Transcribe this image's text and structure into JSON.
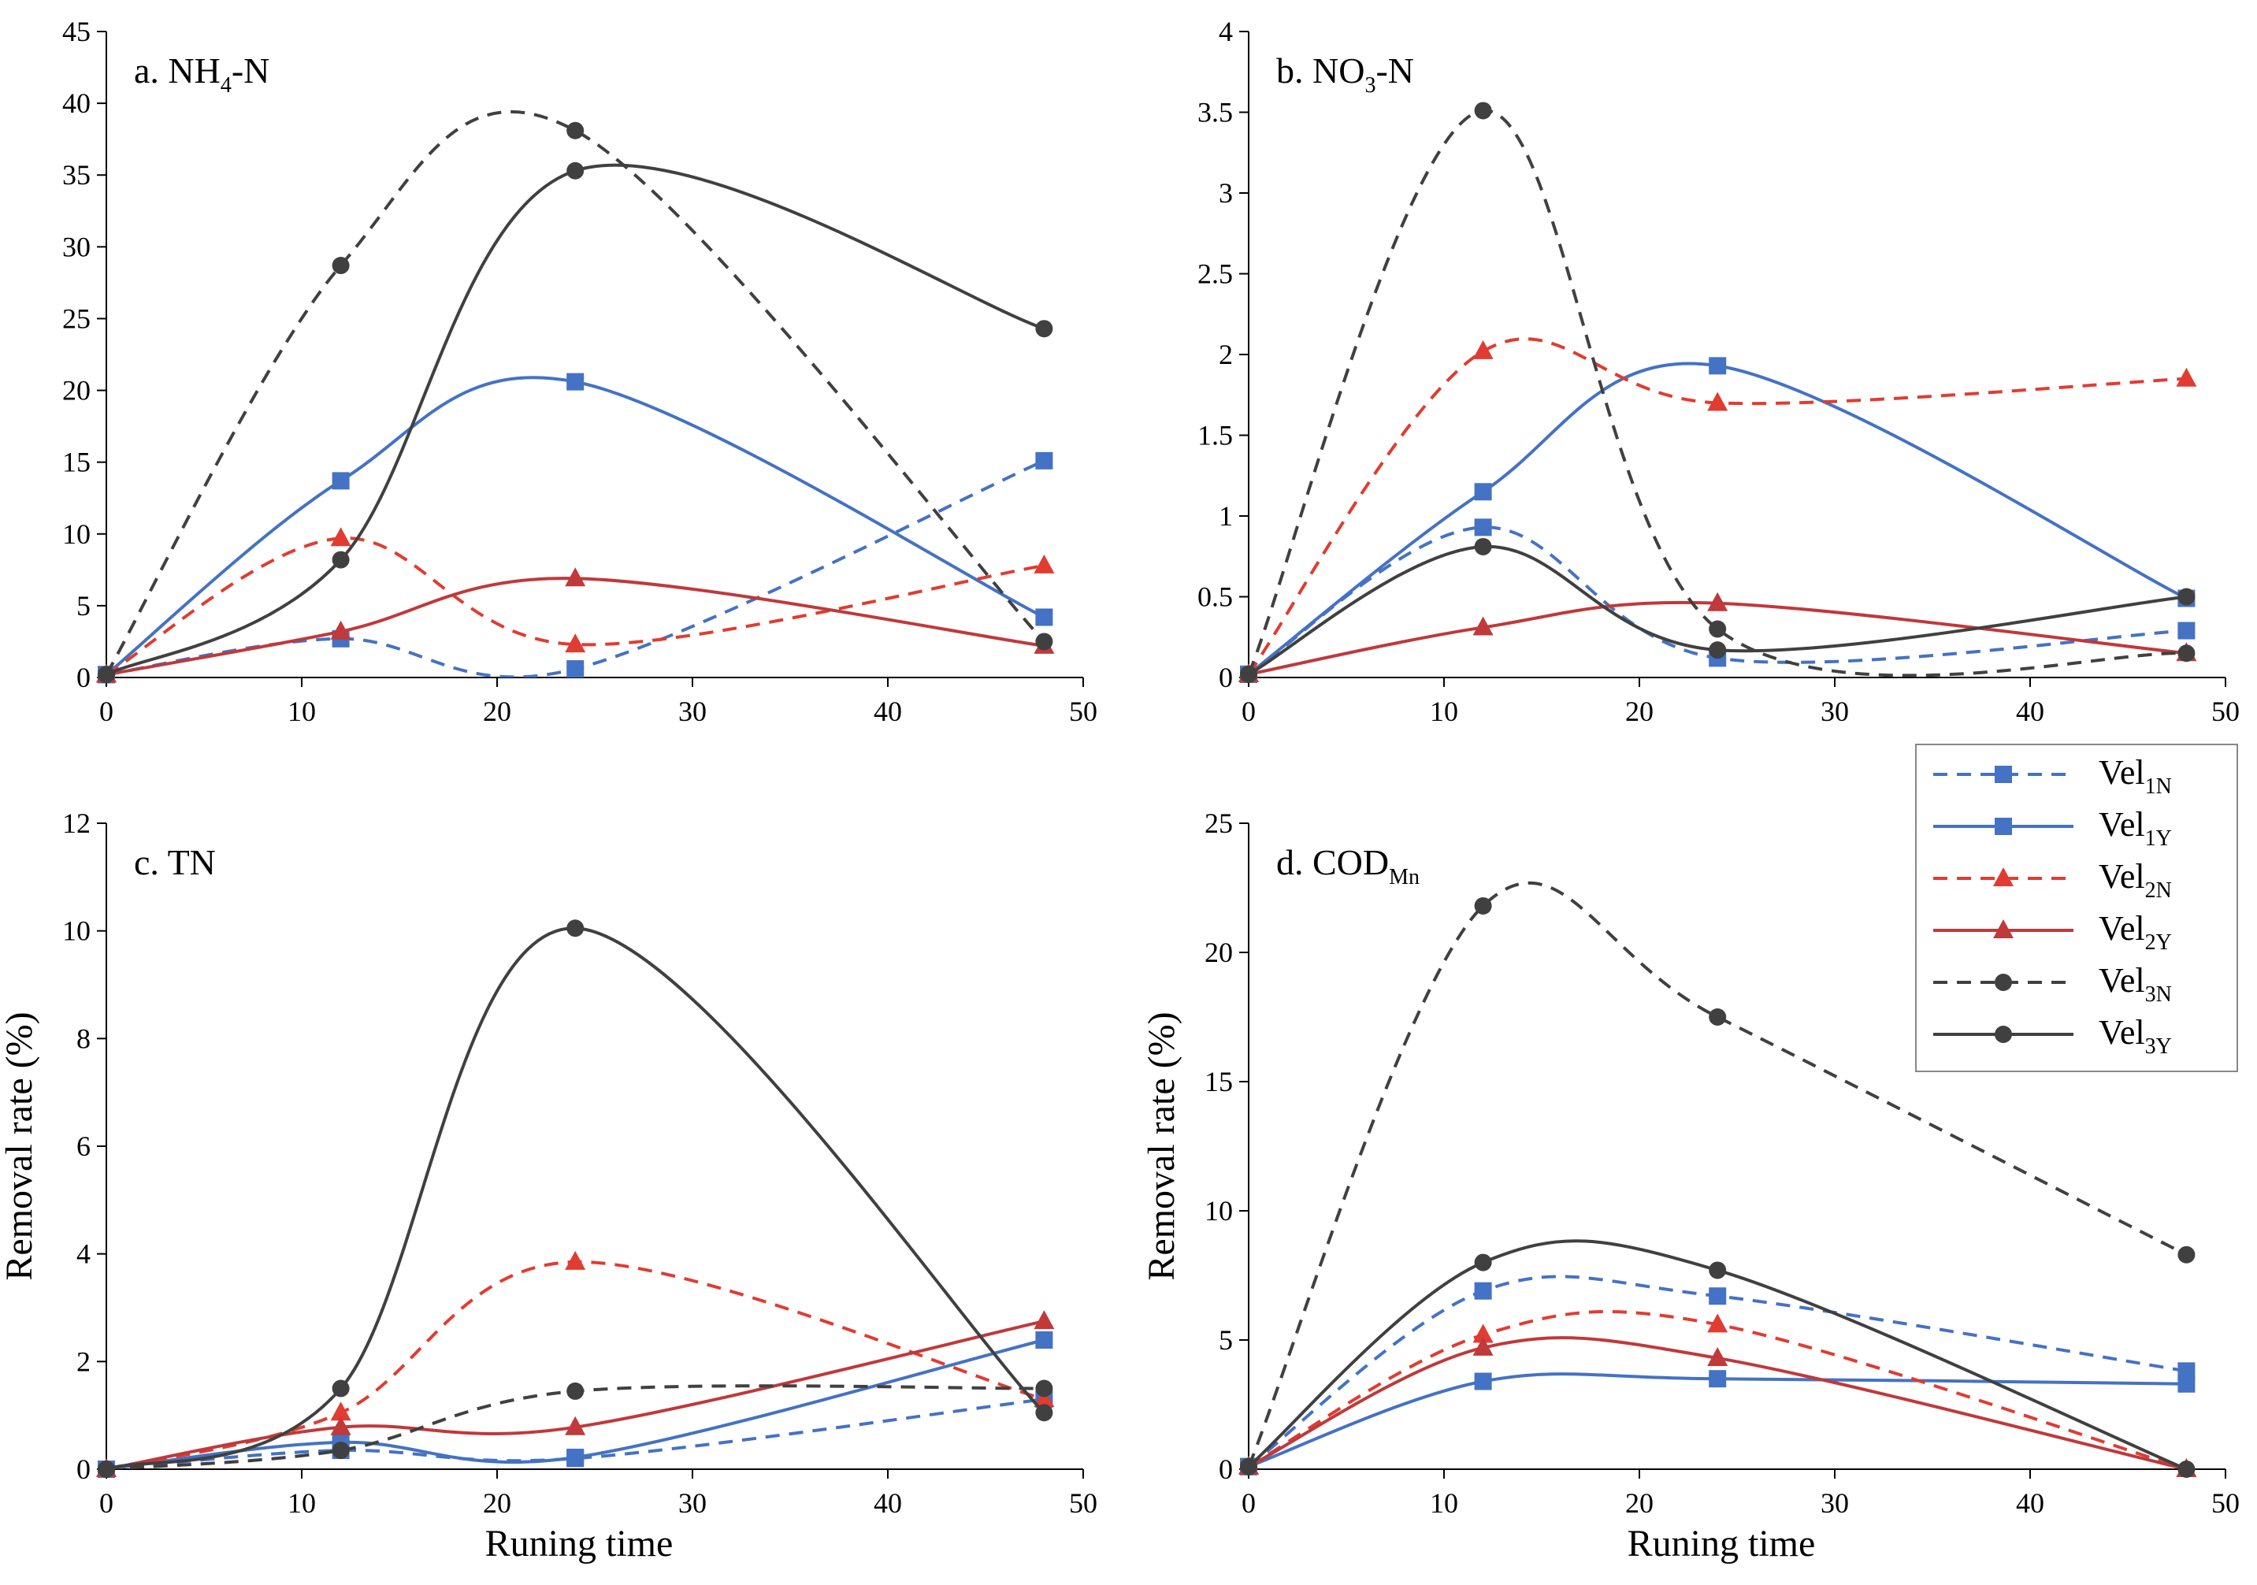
{
  "chart_data": [
    {
      "id": "a",
      "type": "line",
      "title": "a. NH4-N",
      "title_parts": {
        "prefix": "a. NH",
        "sub": "4",
        "suffix": "-N"
      },
      "xlabel": "",
      "ylabel": "",
      "xlim": [
        0,
        50
      ],
      "ylim": [
        0,
        45
      ],
      "xticks": [
        0,
        10,
        20,
        30,
        40,
        50
      ],
      "yticks": [
        0,
        5,
        10,
        15,
        20,
        25,
        30,
        35,
        40,
        45
      ],
      "x": [
        0,
        12,
        24,
        48
      ],
      "series": [
        {
          "key": "vel1N",
          "values": [
            0.2,
            2.7,
            0.6,
            15.1
          ]
        },
        {
          "key": "vel1Y",
          "values": [
            0.2,
            13.7,
            20.6,
            4.2
          ]
        },
        {
          "key": "vel2N",
          "values": [
            0.2,
            9.7,
            2.3,
            7.8
          ]
        },
        {
          "key": "vel2Y",
          "values": [
            0.2,
            3.2,
            6.9,
            2.2
          ]
        },
        {
          "key": "vel3N",
          "values": [
            0.2,
            28.7,
            38.1,
            2.5
          ]
        },
        {
          "key": "vel3Y",
          "values": [
            0.2,
            8.2,
            35.3,
            24.3
          ]
        }
      ]
    },
    {
      "id": "b",
      "type": "line",
      "title": "b. NO3-N",
      "title_parts": {
        "prefix": "b.  NO",
        "sub": "3",
        "suffix": "-N"
      },
      "xlabel": "",
      "ylabel": "",
      "xlim": [
        0,
        50
      ],
      "ylim": [
        0,
        4
      ],
      "xticks": [
        0,
        10,
        20,
        30,
        40,
        50
      ],
      "yticks": [
        0,
        0.5,
        1,
        1.5,
        2,
        2.5,
        3,
        3.5,
        4
      ],
      "x": [
        0,
        12,
        24,
        48
      ],
      "series": [
        {
          "key": "vel1N",
          "values": [
            0.02,
            0.93,
            0.12,
            0.29
          ]
        },
        {
          "key": "vel1Y",
          "values": [
            0.02,
            1.15,
            1.93,
            0.49
          ]
        },
        {
          "key": "vel2N",
          "values": [
            0.02,
            2.02,
            1.7,
            1.85
          ]
        },
        {
          "key": "vel2Y",
          "values": [
            0.02,
            0.31,
            0.46,
            0.15
          ]
        },
        {
          "key": "vel3N",
          "values": [
            0.02,
            3.51,
            0.3,
            0.15
          ]
        },
        {
          "key": "vel3Y",
          "values": [
            0.02,
            0.81,
            0.17,
            0.5
          ]
        }
      ]
    },
    {
      "id": "c",
      "type": "line",
      "title": "c. TN",
      "title_parts": {
        "prefix": "c. TN",
        "sub": "",
        "suffix": ""
      },
      "xlabel": "Runing time",
      "ylabel": "Removal rate (%)",
      "xlim": [
        0,
        50
      ],
      "ylim": [
        0,
        12
      ],
      "xticks": [
        0,
        10,
        20,
        30,
        40,
        50
      ],
      "yticks": [
        0,
        2,
        4,
        6,
        8,
        10,
        12
      ],
      "x": [
        0,
        12,
        24,
        48
      ],
      "series": [
        {
          "key": "vel1N",
          "values": [
            0.0,
            0.35,
            0.2,
            1.3
          ]
        },
        {
          "key": "vel1Y",
          "values": [
            0.0,
            0.5,
            0.22,
            2.4
          ]
        },
        {
          "key": "vel2N",
          "values": [
            0.0,
            1.05,
            3.85,
            1.3
          ]
        },
        {
          "key": "vel2Y",
          "values": [
            0.0,
            0.78,
            0.78,
            2.75
          ]
        },
        {
          "key": "vel3N",
          "values": [
            0.0,
            0.35,
            1.45,
            1.5
          ]
        },
        {
          "key": "vel3Y",
          "values": [
            0.0,
            1.5,
            10.05,
            1.05
          ]
        }
      ]
    },
    {
      "id": "d",
      "type": "line",
      "title": "d. CODMn",
      "title_parts": {
        "prefix": "d. COD",
        "sub": "Mn",
        "suffix": ""
      },
      "xlabel": "Runing time",
      "ylabel": "Removal rate (%)",
      "xlim": [
        0,
        50
      ],
      "ylim": [
        0,
        25
      ],
      "xticks": [
        0,
        10,
        20,
        30,
        40,
        50
      ],
      "yticks": [
        0,
        5,
        10,
        15,
        20,
        25
      ],
      "x": [
        0,
        12,
        24,
        48
      ],
      "series": [
        {
          "key": "vel1N",
          "values": [
            0.1,
            6.9,
            6.7,
            3.8
          ]
        },
        {
          "key": "vel1Y",
          "values": [
            0.1,
            3.4,
            3.5,
            3.3
          ]
        },
        {
          "key": "vel2N",
          "values": [
            0.1,
            5.2,
            5.6,
            0.0
          ]
        },
        {
          "key": "vel2Y",
          "values": [
            0.1,
            4.7,
            4.3,
            0.0
          ]
        },
        {
          "key": "vel3N",
          "values": [
            0.1,
            21.8,
            17.5,
            8.3
          ]
        },
        {
          "key": "vel3Y",
          "values": [
            0.1,
            8.0,
            7.7,
            0.0
          ]
        }
      ]
    }
  ],
  "legend": {
    "position": "right-middle",
    "items": [
      {
        "key": "vel1N",
        "label": "Vel",
        "sub": "1N",
        "color": "#4472C4",
        "marker": "square",
        "dashed": true
      },
      {
        "key": "vel1Y",
        "label": "Vel",
        "sub": "1Y",
        "color": "#4472C4",
        "marker": "square",
        "dashed": false
      },
      {
        "key": "vel2N",
        "label": "Vel",
        "sub": "2N",
        "color": "#E03C31",
        "marker": "triangle",
        "dashed": true
      },
      {
        "key": "vel2Y",
        "label": "Vel",
        "sub": "2Y",
        "color": "#C0393B",
        "marker": "triangle",
        "dashed": false
      },
      {
        "key": "vel3N",
        "label": "Vel",
        "sub": "3N",
        "color": "#404040",
        "marker": "circle",
        "dashed": true
      },
      {
        "key": "vel3Y",
        "label": "Vel",
        "sub": "3Y",
        "color": "#404040",
        "marker": "circle",
        "dashed": false
      }
    ]
  }
}
